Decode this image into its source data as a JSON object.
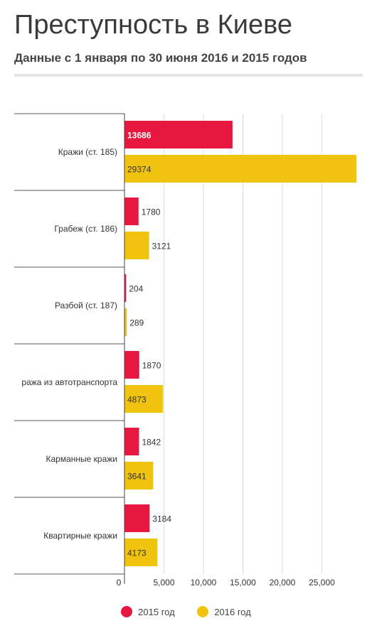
{
  "header": {
    "title": "Преступность в Киеве",
    "subtitle": "Данные с 1 января по 30 июня 2016 и 2015 годов"
  },
  "colors": {
    "s2015": "#e8173f",
    "s2016": "#f0c30f"
  },
  "chart_data": {
    "type": "bar",
    "orientation": "horizontal",
    "title": "Преступность в Киеве",
    "subtitle": "Данные с 1 января по 30 июня 2016 и 2015 годов",
    "categories": [
      "Кражи (ст. 185)",
      "Грабеж (ст. 186)",
      "Разбой (ст. 187)",
      "ража из автотранспорта",
      "Карманные кражи",
      "Квартирные кражи"
    ],
    "series": [
      {
        "name": "2015 год",
        "values": [
          13686,
          1780,
          204,
          1870,
          1842,
          3184
        ]
      },
      {
        "name": "2016 год",
        "values": [
          29374,
          3121,
          289,
          4873,
          3641,
          4173
        ]
      }
    ],
    "value_labels": [
      [
        "13686",
        "1780",
        "204",
        "1870",
        "1842",
        "3184"
      ],
      [
        "29374",
        "3121",
        "289",
        "4873",
        "3641",
        "4173"
      ]
    ],
    "xlim": [
      0,
      29374
    ],
    "xticks": [
      0,
      5000,
      10000,
      15000,
      20000,
      25000
    ],
    "xtick_labels": [
      "0",
      "5,000",
      "10,000",
      "15,000",
      "20,000",
      "25,000"
    ],
    "grid": true,
    "legend": "bottom"
  }
}
